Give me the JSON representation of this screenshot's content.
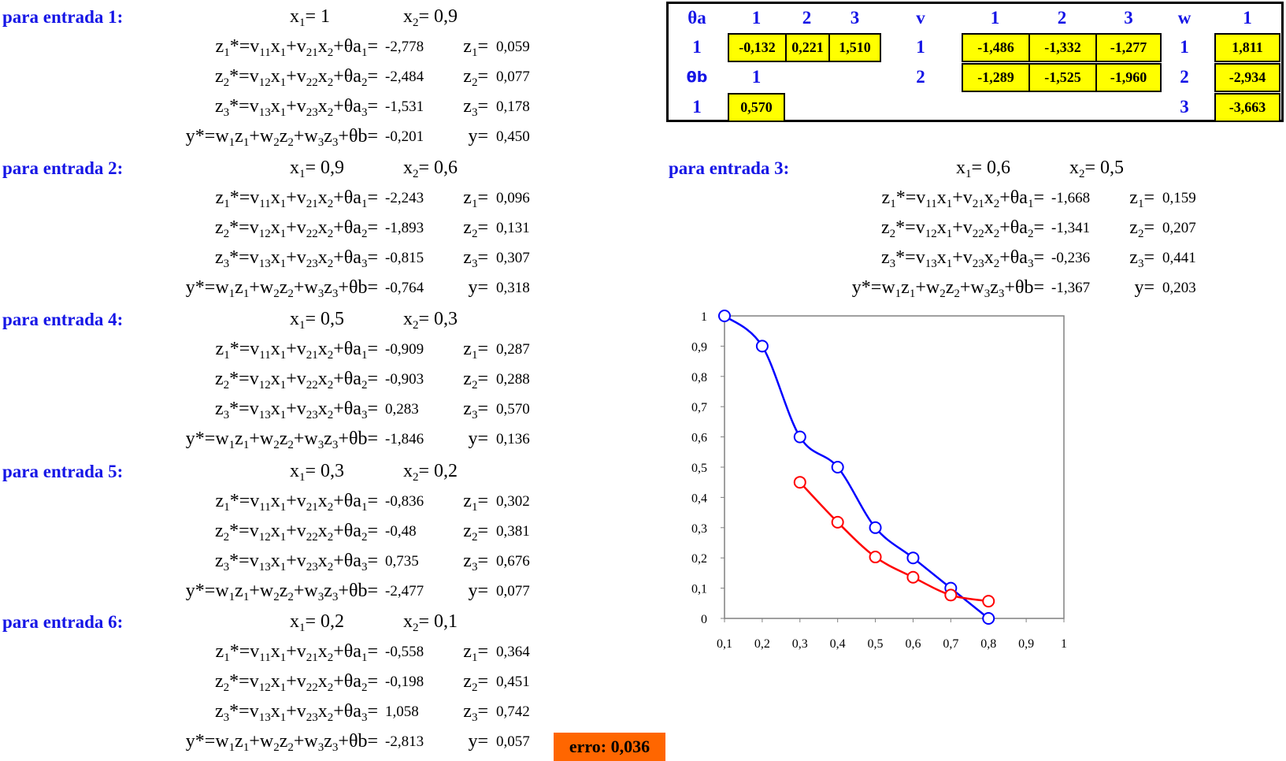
{
  "blocks": [
    {
      "title": "para entrada 1:",
      "x1": "x",
      "x1_sub": "1",
      "x1_eq": "= 1",
      "x2": "x",
      "x2_sub": "2",
      "x2_eq": "= 0,9",
      "eq1": "-2,778",
      "z1": "0,059",
      "eq2": "-2,484",
      "z2": "0,077",
      "eq3": "-1,531",
      "z3": "0,178",
      "eqy": "-0,201",
      "y": "0,450"
    },
    {
      "title": "para entrada 2:",
      "x1": "x",
      "x1_sub": "1",
      "x1_eq": "= 0,9",
      "x2": "x",
      "x2_sub": "2",
      "x2_eq": "= 0,6",
      "eq1": "-2,243",
      "z1": "0,096",
      "eq2": "-1,893",
      "z2": "0,131",
      "eq3": "-0,815",
      "z3": "0,307",
      "eqy": "-0,764",
      "y": "0,318"
    },
    {
      "title": "para entrada 3:",
      "x1": "x",
      "x1_sub": "1",
      "x1_eq": "= 0,6",
      "x2": "x",
      "x2_sub": "2",
      "x2_eq": "= 0,5",
      "eq1": "-1,668",
      "z1": "0,159",
      "eq2": "-1,341",
      "z2": "0,207",
      "eq3": "-0,236",
      "z3": "0,441",
      "eqy": "-1,367",
      "y": "0,203"
    },
    {
      "title": "para entrada 4:",
      "x1": "x",
      "x1_sub": "1",
      "x1_eq": "= 0,5",
      "x2": "x",
      "x2_sub": "2",
      "x2_eq": "= 0,3",
      "eq1": "-0,909",
      "z1": "0,287",
      "eq2": "-0,903",
      "z2": "0,288",
      "eq3": "0,283",
      "z3": "0,570",
      "eqy": "-1,846",
      "y": "0,136"
    },
    {
      "title": "para entrada 5:",
      "x1": "x",
      "x1_sub": "1",
      "x1_eq": "= 0,3",
      "x2": "x",
      "x2_sub": "2",
      "x2_eq": "= 0,2",
      "eq1": "-0,836",
      "z1": "0,302",
      "eq2": "-0,48",
      "z2": "0,381",
      "eq3": "0,735",
      "z3": "0,676",
      "eqy": "-2,477",
      "y": "0,077"
    },
    {
      "title": "para entrada 6:",
      "x1": "x",
      "x1_sub": "1",
      "x1_eq": "= 0,2",
      "x2": "x",
      "x2_sub": "2",
      "x2_eq": "= 0,1",
      "eq1": "-0,558",
      "z1": "0,364",
      "eq2": "-0,198",
      "z2": "0,451",
      "eq3": "1,058",
      "z3": "0,742",
      "eqy": "-2,813",
      "y": "0,057"
    }
  ],
  "eq_text": {
    "z_lhs": "z",
    "star_eq": "*=",
    "v": "v",
    "x": "x",
    "plus": "+",
    "theta_a": "θa",
    "theta_b": "θb",
    "eq": "=",
    "y_star": "y*=",
    "w": "w",
    "zlbl": "z",
    "y_lbl": "y=",
    "s1": "1",
    "s2": "2",
    "s3": "3",
    "s11": "11",
    "s21": "21",
    "s12": "12",
    "s22": "22",
    "s13": "13",
    "s23": "23"
  },
  "weights": {
    "theta_a_header": "θa",
    "theta_b_header": "θb",
    "v_header": "v",
    "w_header": "w",
    "col1": "1",
    "col2": "2",
    "col3": "3",
    "row1": "1",
    "row2": "2",
    "row3": "3",
    "theta_a": [
      "-0,132",
      "0,221",
      "1,510"
    ],
    "theta_b_col": "1",
    "theta_b_row": "1",
    "theta_b": "0,570",
    "v_row1": [
      "-1,486",
      "-1,332",
      "-1,277"
    ],
    "v_row2": [
      "-1,289",
      "-1,525",
      "-1,960"
    ],
    "w_col": "1",
    "w": [
      "1,811",
      "-2,934",
      "-3,663"
    ]
  },
  "error": {
    "label": "erro:",
    "value": "0,036"
  },
  "chart_data": {
    "type": "line",
    "xlim": [
      0.1,
      1
    ],
    "ylim": [
      0,
      1
    ],
    "xticks": [
      "0,1",
      "0,2",
      "0,3",
      "0,4",
      "0,5",
      "0,6",
      "0,7",
      "0,8",
      "0,9",
      "1"
    ],
    "yticks": [
      "0",
      "0,1",
      "0,2",
      "0,3",
      "0,4",
      "0,5",
      "0,6",
      "0,7",
      "0,8",
      "0,9",
      "1"
    ],
    "grid": false,
    "series": [
      {
        "color": "#0000ff",
        "x": [
          0.1,
          0.2,
          0.3,
          0.4,
          0.5,
          0.6,
          0.7,
          0.8
        ],
        "y": [
          1,
          0.9,
          0.6,
          0.5,
          0.3,
          0.2,
          0.1,
          0
        ]
      },
      {
        "color": "#ff0000",
        "x": [
          0.3,
          0.4,
          0.5,
          0.6,
          0.7,
          0.8
        ],
        "y": [
          0.45,
          0.318,
          0.203,
          0.136,
          0.077,
          0.057
        ]
      }
    ]
  }
}
